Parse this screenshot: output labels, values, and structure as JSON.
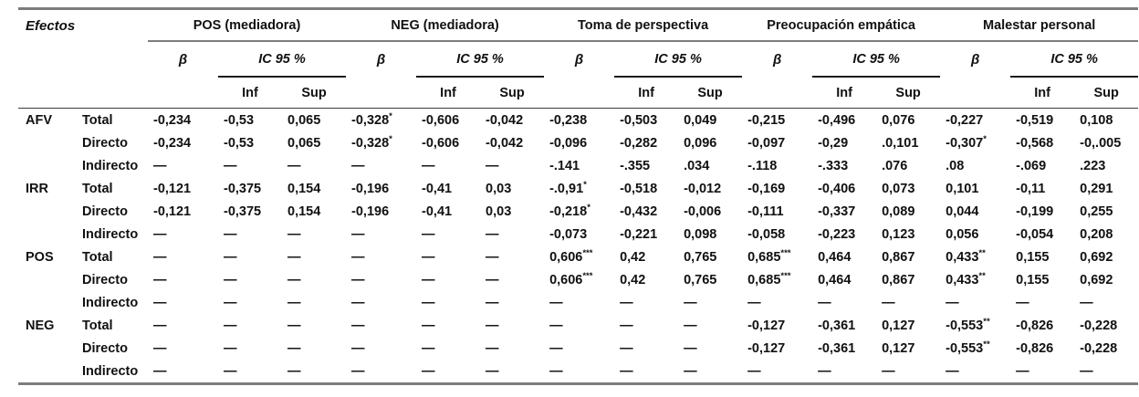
{
  "table": {
    "corner_label": "Efectos",
    "beta_label": "β",
    "ic_label": "IC 95 %",
    "inf_label": "Inf",
    "sup_label": "Sup",
    "groups": [
      {
        "label": "POS (mediadora)"
      },
      {
        "label": "NEG (mediadora)"
      },
      {
        "label": "Toma de perspectiva"
      },
      {
        "label": "Preocupación empática"
      },
      {
        "label": "Malestar personal"
      }
    ],
    "row_groups": [
      {
        "label": "AFV",
        "rows": [
          {
            "label": "Total",
            "cells": [
              "-0,234",
              "-0,53",
              "0,065",
              "-0,328*",
              "-0,606",
              "-0,042",
              "-0,238",
              "-0,503",
              "0,049",
              "-0,215",
              "-0,496",
              "0,076",
              "-0,227",
              "-0,519",
              "0,108"
            ]
          },
          {
            "label": "Directo",
            "cells": [
              "-0,234",
              "-0,53",
              "0,065",
              "-0,328*",
              "-0,606",
              "-0,042",
              "-0,096",
              "-0,282",
              "0,096",
              "-0,097",
              "-0,29",
              ".0,101",
              "-0,307*",
              "-0,568",
              "-0,.005"
            ]
          },
          {
            "label": "Indirecto",
            "cells": [
              "—",
              "—",
              "—",
              "—",
              "—",
              "—",
              "-.141",
              "-.355",
              ".034",
              "-.118",
              "-.333",
              ".076",
              ".08",
              "-.069",
              ".223"
            ]
          }
        ]
      },
      {
        "label": "IRR",
        "rows": [
          {
            "label": "Total",
            "cells": [
              "-0,121",
              "-0,375",
              "0,154",
              "-0,196",
              "-0,41",
              "0,03",
              "-.0,91*",
              "-0,518",
              "-0,012",
              "-0,169",
              "-0,406",
              "0,073",
              "0,101",
              "-0,11",
              "0,291"
            ]
          },
          {
            "label": "Directo",
            "cells": [
              "-0,121",
              "-0,375",
              "0,154",
              "-0,196",
              "-0,41",
              "0,03",
              "-0,218*",
              "-0,432",
              "-0,006",
              "-0,111",
              "-0,337",
              "0,089",
              "0,044",
              "-0,199",
              "0,255"
            ]
          },
          {
            "label": "Indirecto",
            "cells": [
              "—",
              "—",
              "—",
              "—",
              "—",
              "—",
              "-0,073",
              "-0,221",
              "0,098",
              "-0,058",
              "-0,223",
              "0,123",
              "0,056",
              "-0,054",
              "0,208"
            ]
          }
        ]
      },
      {
        "label": "POS",
        "rows": [
          {
            "label": "Total",
            "cells": [
              "—",
              "—",
              "—",
              "—",
              "—",
              "—",
              "0,606***",
              "0,42",
              "0,765",
              "0,685***",
              "0,464",
              "0,867",
              "0,433**",
              "0,155",
              "0,692"
            ]
          },
          {
            "label": "Directo",
            "cells": [
              "—",
              "—",
              "—",
              "—",
              "—",
              "—",
              "0,606***",
              "0,42",
              "0,765",
              "0,685***",
              "0,464",
              "0,867",
              "0,433**",
              "0,155",
              "0,692"
            ]
          },
          {
            "label": "Indirecto",
            "cells": [
              "—",
              "—",
              "—",
              "—",
              "—",
              "—",
              "—",
              "—",
              "—",
              "—",
              "—",
              "—",
              "—",
              "—",
              "—"
            ]
          }
        ]
      },
      {
        "label": "NEG",
        "rows": [
          {
            "label": "Total",
            "cells": [
              "—",
              "—",
              "—",
              "—",
              "—",
              "—",
              "—",
              "—",
              "—",
              "-0,127",
              "-0,361",
              "0,127",
              "-0,553**",
              "-0,826",
              "-0,228"
            ]
          },
          {
            "label": "Directo",
            "cells": [
              "—",
              "—",
              "—",
              "—",
              "—",
              "—",
              "—",
              "—",
              "—",
              "-0,127",
              "-0,361",
              "0,127",
              "-0,553**",
              "-0,826",
              "-0,228"
            ]
          },
          {
            "label": "Indirecto",
            "cells": [
              "—",
              "—",
              "—",
              "—",
              "—",
              "—",
              "—",
              "—",
              "—",
              "—",
              "—",
              "—",
              "—",
              "—",
              "—"
            ]
          }
        ]
      }
    ]
  }
}
